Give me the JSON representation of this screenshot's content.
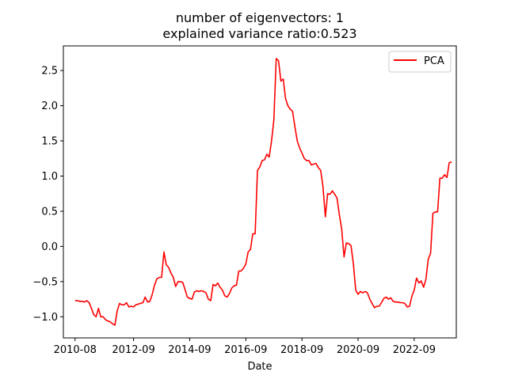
{
  "chart_data": {
    "type": "line",
    "title_line1": "number of eigenvectors: 1",
    "title_line2": "explained variance ratio:0.523",
    "xlabel": "Date",
    "ylabel": "",
    "grid": false,
    "legend_position": "top-right",
    "x_range": [
      "2010-03",
      "2024-03"
    ],
    "ylim": [
      -1.3,
      2.85
    ],
    "x_ticks": [
      "2010-08",
      "2012-09",
      "2014-09",
      "2016-09",
      "2018-09",
      "2020-09",
      "2022-09"
    ],
    "y_ticks": [
      -1.0,
      -0.5,
      0.0,
      0.5,
      1.0,
      1.5,
      2.0,
      2.5
    ],
    "y_tick_labels": [
      "−1.0",
      "−0.5",
      "0.0",
      "0.5",
      "1.0",
      "1.5",
      "2.0",
      "2.5"
    ],
    "series": [
      {
        "name": "PCA",
        "color": "#ff0000",
        "points": [
          [
            "2010-08",
            -0.77
          ],
          [
            "2010-09",
            -0.77
          ],
          [
            "2010-10",
            -0.78
          ],
          [
            "2010-11",
            -0.78
          ],
          [
            "2010-12",
            -0.79
          ],
          [
            "2011-01",
            -0.77
          ],
          [
            "2011-02",
            -0.8
          ],
          [
            "2011-03",
            -0.88
          ],
          [
            "2011-04",
            -0.97
          ],
          [
            "2011-05",
            -1.0
          ],
          [
            "2011-06",
            -0.88
          ],
          [
            "2011-07",
            -1.0
          ],
          [
            "2011-08",
            -1.0
          ],
          [
            "2011-09",
            -1.04
          ],
          [
            "2011-10",
            -1.06
          ],
          [
            "2011-11",
            -1.07
          ],
          [
            "2011-12",
            -1.1
          ],
          [
            "2012-01",
            -1.12
          ],
          [
            "2012-02",
            -0.92
          ],
          [
            "2012-03",
            -0.81
          ],
          [
            "2012-04",
            -0.83
          ],
          [
            "2012-05",
            -0.83
          ],
          [
            "2012-06",
            -0.8
          ],
          [
            "2012-07",
            -0.86
          ],
          [
            "2012-08",
            -0.85
          ],
          [
            "2012-09",
            -0.86
          ],
          [
            "2012-10",
            -0.83
          ],
          [
            "2012-11",
            -0.82
          ],
          [
            "2012-12",
            -0.81
          ],
          [
            "2013-01",
            -0.8
          ],
          [
            "2013-02",
            -0.72
          ],
          [
            "2013-03",
            -0.79
          ],
          [
            "2013-04",
            -0.78
          ],
          [
            "2013-05",
            -0.68
          ],
          [
            "2013-06",
            -0.55
          ],
          [
            "2013-07",
            -0.46
          ],
          [
            "2013-08",
            -0.44
          ],
          [
            "2013-09",
            -0.44
          ],
          [
            "2013-10",
            -0.08
          ],
          [
            "2013-11",
            -0.26
          ],
          [
            "2013-12",
            -0.3
          ],
          [
            "2014-01",
            -0.38
          ],
          [
            "2014-02",
            -0.44
          ],
          [
            "2014-03",
            -0.57
          ],
          [
            "2014-04",
            -0.5
          ],
          [
            "2014-05",
            -0.5
          ],
          [
            "2014-06",
            -0.51
          ],
          [
            "2014-07",
            -0.61
          ],
          [
            "2014-08",
            -0.72
          ],
          [
            "2014-09",
            -0.74
          ],
          [
            "2014-10",
            -0.75
          ],
          [
            "2014-11",
            -0.65
          ],
          [
            "2014-12",
            -0.63
          ],
          [
            "2015-01",
            -0.64
          ],
          [
            "2015-02",
            -0.63
          ],
          [
            "2015-03",
            -0.64
          ],
          [
            "2015-04",
            -0.66
          ],
          [
            "2015-05",
            -0.75
          ],
          [
            "2015-06",
            -0.77
          ],
          [
            "2015-07",
            -0.54
          ],
          [
            "2015-08",
            -0.56
          ],
          [
            "2015-09",
            -0.52
          ],
          [
            "2015-10",
            -0.58
          ],
          [
            "2015-11",
            -0.62
          ],
          [
            "2015-12",
            -0.7
          ],
          [
            "2016-01",
            -0.72
          ],
          [
            "2016-02",
            -0.67
          ],
          [
            "2016-03",
            -0.59
          ],
          [
            "2016-04",
            -0.56
          ],
          [
            "2016-05",
            -0.55
          ],
          [
            "2016-06",
            -0.35
          ],
          [
            "2016-07",
            -0.35
          ],
          [
            "2016-08",
            -0.31
          ],
          [
            "2016-09",
            -0.25
          ],
          [
            "2016-10",
            -0.08
          ],
          [
            "2016-11",
            -0.04
          ],
          [
            "2016-12",
            0.18
          ],
          [
            "2017-01",
            0.18
          ],
          [
            "2017-02",
            1.08
          ],
          [
            "2017-03",
            1.13
          ],
          [
            "2017-04",
            1.22
          ],
          [
            "2017-05",
            1.23
          ],
          [
            "2017-06",
            1.31
          ],
          [
            "2017-07",
            1.27
          ],
          [
            "2017-08",
            1.5
          ],
          [
            "2017-09",
            1.8
          ],
          [
            "2017-10",
            2.67
          ],
          [
            "2017-11",
            2.64
          ],
          [
            "2017-12",
            2.35
          ],
          [
            "2018-01",
            2.38
          ],
          [
            "2018-02",
            2.1
          ],
          [
            "2018-03",
            2.0
          ],
          [
            "2018-04",
            1.95
          ],
          [
            "2018-05",
            1.92
          ],
          [
            "2018-06",
            1.7
          ],
          [
            "2018-07",
            1.5
          ],
          [
            "2018-08",
            1.4
          ],
          [
            "2018-09",
            1.33
          ],
          [
            "2018-10",
            1.25
          ],
          [
            "2018-11",
            1.22
          ],
          [
            "2018-12",
            1.22
          ],
          [
            "2019-01",
            1.16
          ],
          [
            "2019-02",
            1.17
          ],
          [
            "2019-03",
            1.18
          ],
          [
            "2019-04",
            1.12
          ],
          [
            "2019-05",
            1.08
          ],
          [
            "2019-06",
            0.85
          ],
          [
            "2019-07",
            0.42
          ],
          [
            "2019-08",
            0.75
          ],
          [
            "2019-09",
            0.74
          ],
          [
            "2019-10",
            0.79
          ],
          [
            "2019-11",
            0.74
          ],
          [
            "2019-12",
            0.69
          ],
          [
            "2020-01",
            0.45
          ],
          [
            "2020-02",
            0.25
          ],
          [
            "2020-03",
            -0.15
          ],
          [
            "2020-04",
            0.05
          ],
          [
            "2020-05",
            0.04
          ],
          [
            "2020-06",
            0.01
          ],
          [
            "2020-07",
            -0.25
          ],
          [
            "2020-08",
            -0.62
          ],
          [
            "2020-09",
            -0.68
          ],
          [
            "2020-10",
            -0.64
          ],
          [
            "2020-11",
            -0.66
          ],
          [
            "2020-12",
            -0.64
          ],
          [
            "2021-01",
            -0.66
          ],
          [
            "2021-02",
            -0.75
          ],
          [
            "2021-03",
            -0.81
          ],
          [
            "2021-04",
            -0.87
          ],
          [
            "2021-05",
            -0.85
          ],
          [
            "2021-06",
            -0.85
          ],
          [
            "2021-07",
            -0.8
          ],
          [
            "2021-08",
            -0.74
          ],
          [
            "2021-09",
            -0.72
          ],
          [
            "2021-10",
            -0.75
          ],
          [
            "2021-11",
            -0.73
          ],
          [
            "2021-12",
            -0.78
          ],
          [
            "2022-01",
            -0.79
          ],
          [
            "2022-02",
            -0.79
          ],
          [
            "2022-03",
            -0.8
          ],
          [
            "2022-04",
            -0.8
          ],
          [
            "2022-05",
            -0.81
          ],
          [
            "2022-06",
            -0.86
          ],
          [
            "2022-07",
            -0.85
          ],
          [
            "2022-08",
            -0.71
          ],
          [
            "2022-09",
            -0.62
          ],
          [
            "2022-10",
            -0.45
          ],
          [
            "2022-11",
            -0.52
          ],
          [
            "2022-12",
            -0.49
          ],
          [
            "2023-01",
            -0.58
          ],
          [
            "2023-02",
            -0.47
          ],
          [
            "2023-03",
            -0.18
          ],
          [
            "2023-04",
            -0.1
          ],
          [
            "2023-05",
            0.47
          ],
          [
            "2023-06",
            0.49
          ],
          [
            "2023-07",
            0.49
          ],
          [
            "2023-08",
            0.97
          ],
          [
            "2023-09",
            0.97
          ],
          [
            "2023-10",
            1.02
          ],
          [
            "2023-11",
            0.98
          ],
          [
            "2023-12",
            1.19
          ],
          [
            "2024-01",
            1.2
          ]
        ]
      }
    ]
  }
}
